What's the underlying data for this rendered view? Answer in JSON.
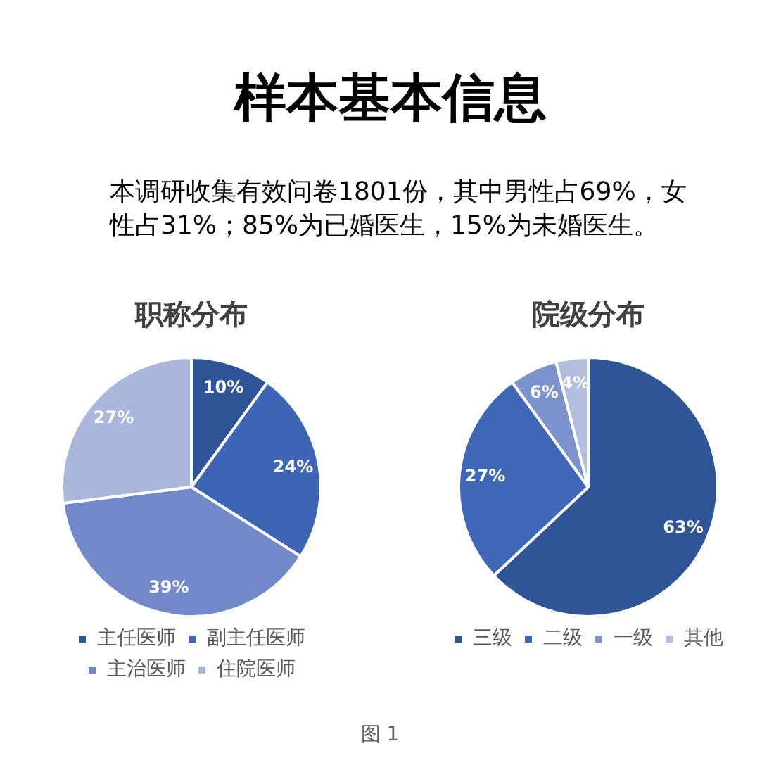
{
  "chart_data": [
    {
      "type": "other",
      "title": "样本基本信息",
      "subtitle": "本调研收集有效问卷1801份，其中男性占69%，女性占31%；85%为已婚医生，15%为未婚医生。"
    },
    {
      "type": "pie",
      "title": "职称分布",
      "categories": [
        "主任医师",
        "副主任医师",
        "主治医师",
        "住院医师"
      ],
      "values": [
        10,
        24,
        39,
        27
      ],
      "colors": [
        "#2f5597",
        "#3c65b5",
        "#7189c8",
        "#aab7dd"
      ],
      "value_labels": [
        "10%",
        "24%",
        "39%",
        "27%"
      ],
      "legend": "bottom"
    },
    {
      "type": "pie",
      "title": "院级分布",
      "categories": [
        "三级",
        "二级",
        "一级",
        "其他"
      ],
      "values": [
        63,
        27,
        6,
        4
      ],
      "colors": [
        "#2f5597",
        "#3e67b6",
        "#7b93cc",
        "#b1bee0"
      ],
      "value_labels": [
        "63%",
        "27%",
        "6%",
        "4%"
      ],
      "legend": "bottom"
    },
    {
      "type": "other",
      "annotations": [
        "图 1"
      ]
    }
  ]
}
